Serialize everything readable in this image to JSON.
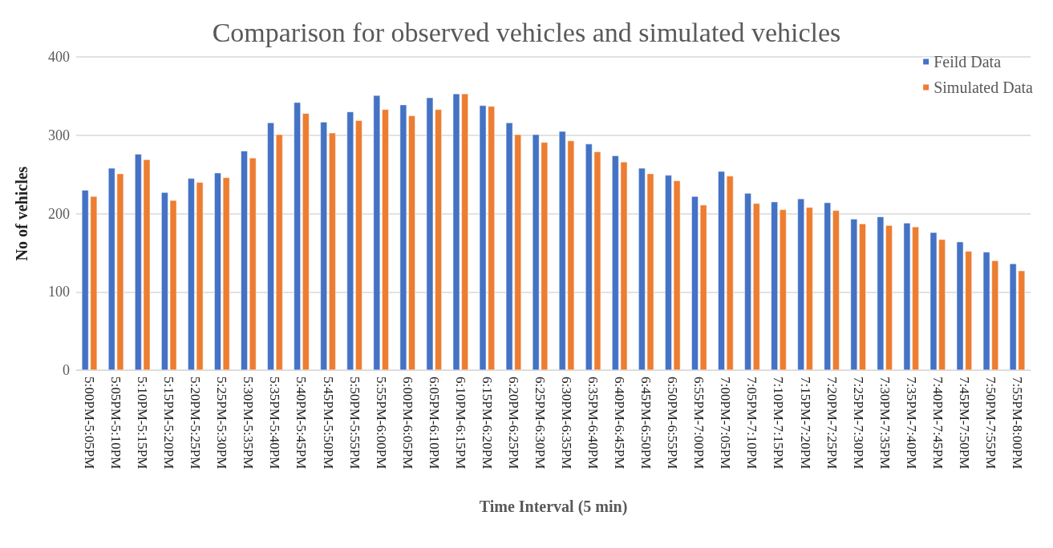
{
  "chart_data": {
    "type": "bar",
    "title": "Comparison for observed vehicles and simulated vehicles",
    "xlabel": "Time Interval (5 min)",
    "ylabel": "No of vehicles",
    "categories": [
      "5:00PM-5:05PM",
      "5:05PM-5:10PM",
      "5:10PM-5:15PM",
      "5:15PM-5:20PM",
      "5:20PM-5:25PM",
      "5:25PM-5:30PM",
      "5:30PM-5:35PM",
      "5:35PM-5:40PM",
      "5:40PM-5:45PM",
      "5:45PM-5:50PM",
      "5:50PM-5:55PM",
      "5:55PM-6:00PM",
      "6:00PM-6:05PM",
      "6:05PM-6:10PM",
      "6:10PM-6:15PM",
      "6:15PM-6:20PM",
      "6:20PM-6:25PM",
      "6:25PM-6:30PM",
      "6:30PM-6:35PM",
      "6:35PM-6:40PM",
      "6:40PM-6:45PM",
      "6:45PM-6:50PM",
      "6:50PM-6:55PM",
      "6:55PM-7:00PM",
      "7:00PM-7:05PM",
      "7:05PM-7:10PM",
      "7:10PM-7:15PM",
      "7:15PM-7:20PM",
      "7:20PM-7:25PM",
      "7:25PM-7:30PM",
      "7:30PM-7:35PM",
      "7:35PM-7:40PM",
      "7:40PM-7:45PM",
      "7:45PM-7:50PM",
      "7:50PM-7:55PM",
      "7:55PM-8:00PM"
    ],
    "series": [
      {
        "name": "Feild Data",
        "color": "#4472c4",
        "values": [
          230,
          258,
          276,
          227,
          245,
          252,
          280,
          316,
          342,
          317,
          330,
          351,
          339,
          348,
          353,
          338,
          316,
          301,
          305,
          289,
          274,
          258,
          249,
          222,
          254,
          226,
          215,
          219,
          214,
          193,
          196,
          188,
          176,
          164,
          151,
          136
        ]
      },
      {
        "name": "Simulated Data",
        "color": "#ed7d31",
        "values": [
          222,
          251,
          269,
          217,
          240,
          246,
          271,
          301,
          328,
          303,
          319,
          333,
          325,
          333,
          353,
          337,
          301,
          291,
          293,
          279,
          266,
          251,
          242,
          211,
          248,
          213,
          205,
          208,
          204,
          187,
          185,
          183,
          167,
          152,
          140,
          127
        ]
      }
    ],
    "ylim": [
      0,
      400
    ],
    "yticks": [
      0,
      100,
      200,
      300,
      400
    ],
    "grid": "y",
    "legend": "top right"
  }
}
